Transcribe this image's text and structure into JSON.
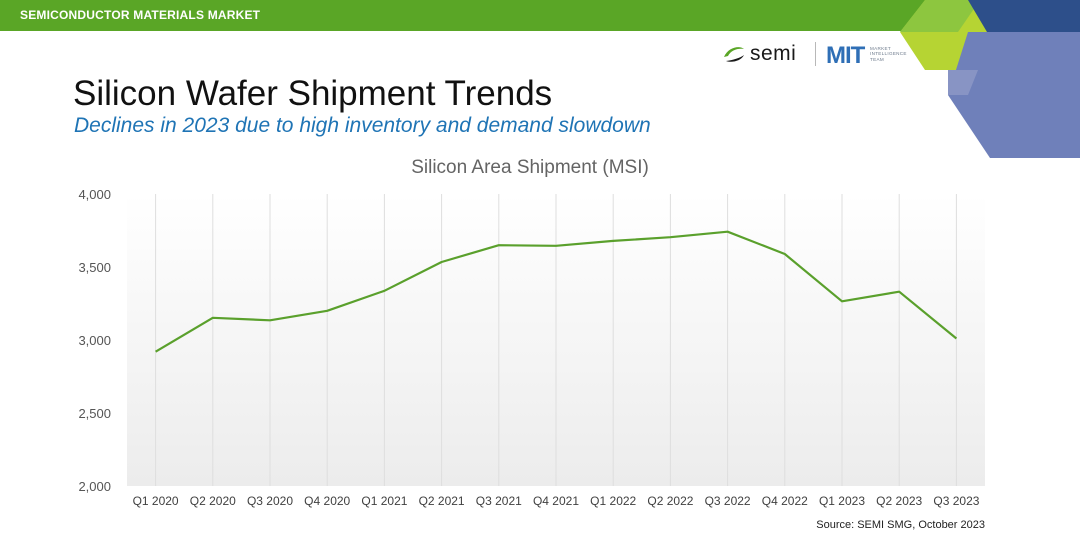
{
  "header": {
    "section_label": "SEMICONDUCTOR MATERIALS MARKET"
  },
  "logos": {
    "semi_wordmark": "semi",
    "mit_wordmark": "MIT",
    "mit_tagline": [
      "MARKET",
      "INTELLIGENCE",
      "TEAM"
    ]
  },
  "slide": {
    "title": "Silicon Wafer Shipment Trends",
    "subtitle": "Declines in 2023 due to high inventory and demand slowdown",
    "source": "Source: SEMI SMG, October 2023"
  },
  "colors": {
    "header_green": "#5aa626",
    "line_green": "#5aa02c",
    "subtitle_blue": "#1f74b5",
    "deco_lime": "#b6d433",
    "deco_blue": "#6f80ba",
    "deco_navy": "#2d4f8a"
  },
  "chart_data": {
    "type": "line",
    "title": "Silicon Area Shipment (MSI)",
    "xlabel": "",
    "ylabel": "",
    "categories": [
      "Q1 2020",
      "Q2 2020",
      "Q3 2020",
      "Q4 2020",
      "Q1 2021",
      "Q2 2021",
      "Q3 2021",
      "Q4 2021",
      "Q1 2022",
      "Q2 2022",
      "Q3 2022",
      "Q4 2022",
      "Q1 2023",
      "Q2 2023",
      "Q3 2023"
    ],
    "series": [
      {
        "values": [
          2920,
          3152,
          3135,
          3200,
          3337,
          3534,
          3649,
          3645,
          3679,
          3704,
          3742,
          3589,
          3265,
          3331,
          3010
        ]
      }
    ],
    "ylim": [
      2000,
      4000
    ],
    "yticks": [
      2000,
      2500,
      3000,
      3500,
      4000
    ],
    "ytick_labels": [
      "2,000",
      "2,500",
      "3,000",
      "3,500",
      "4,000"
    ],
    "grid": "vertical",
    "legend": "none"
  }
}
